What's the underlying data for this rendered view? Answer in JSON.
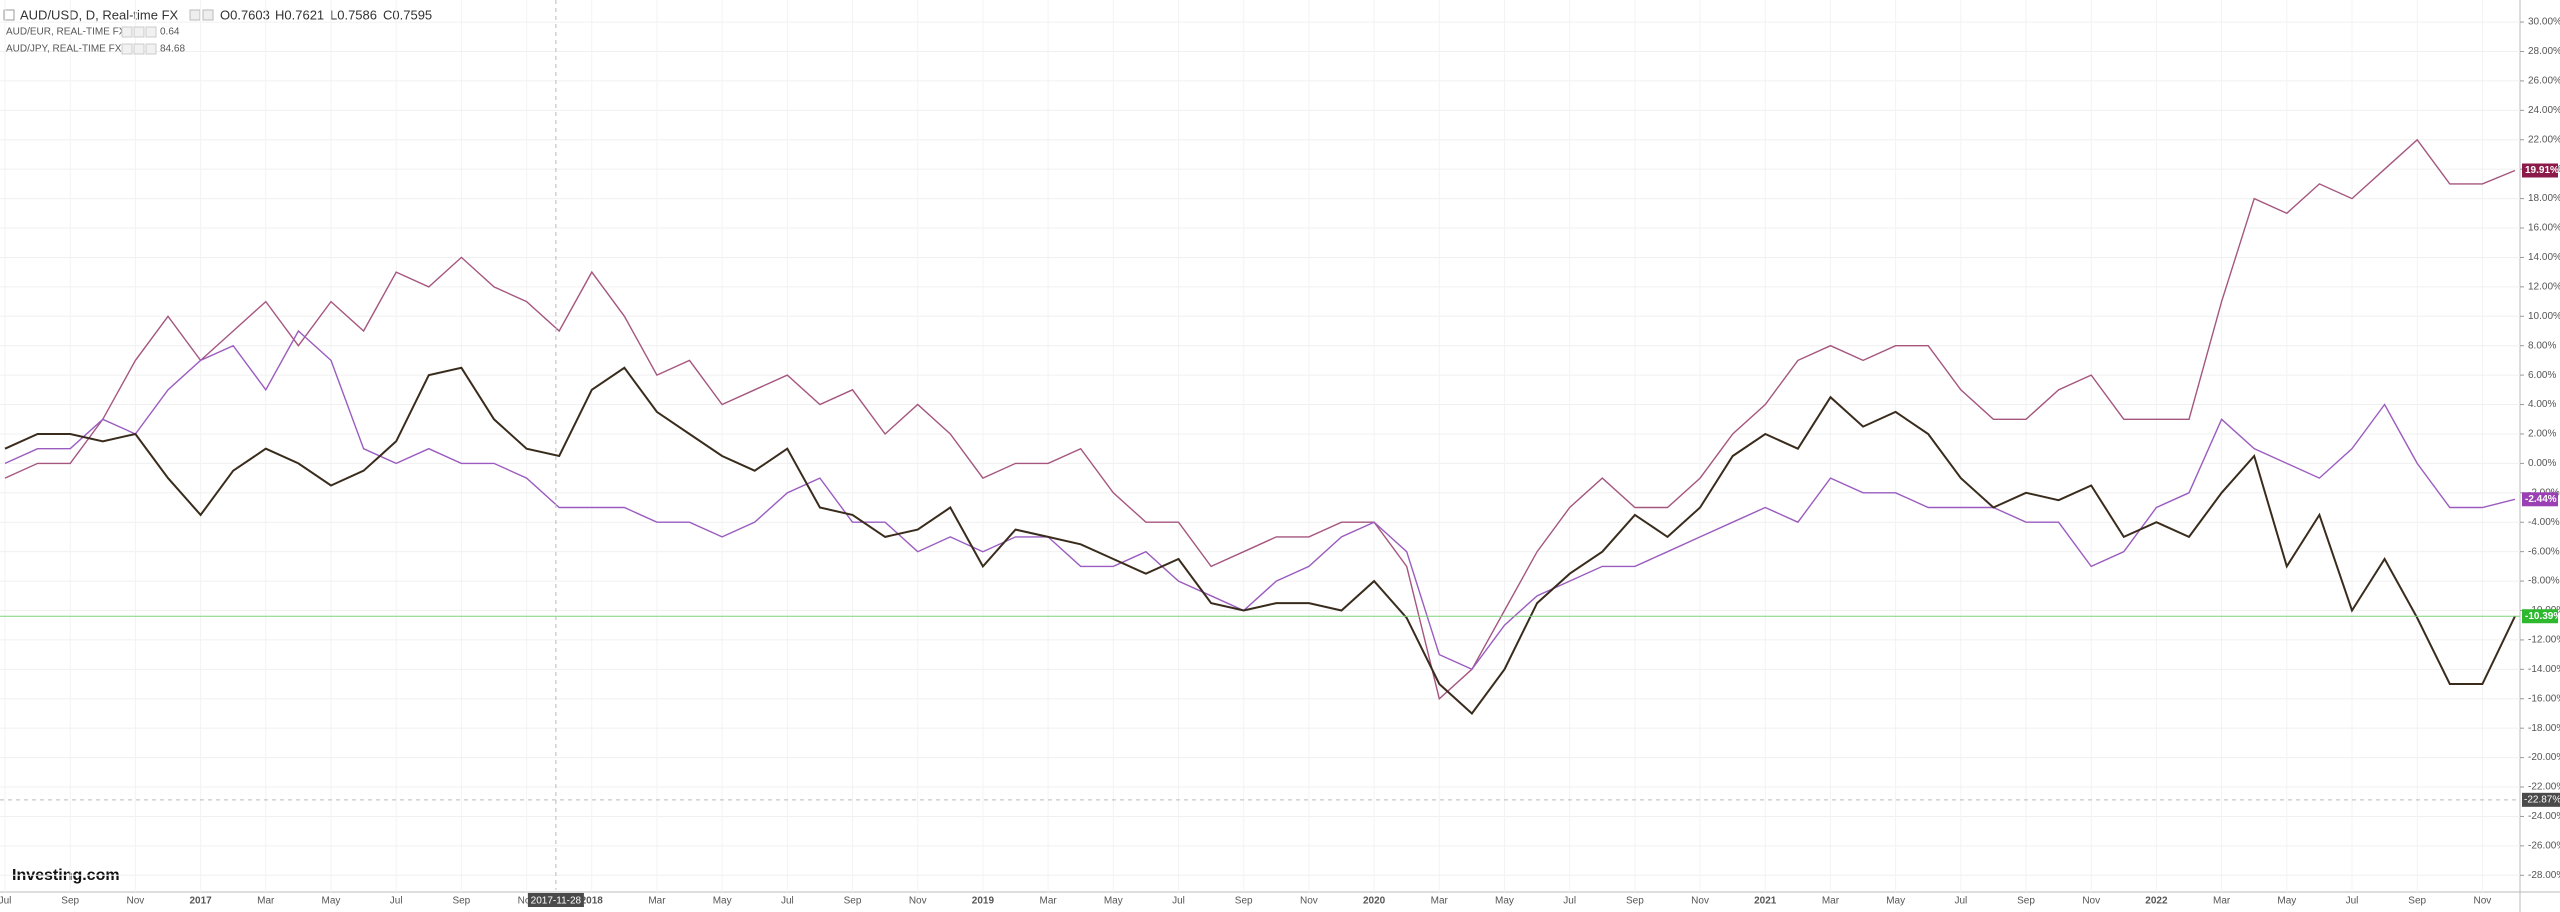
{
  "header": {
    "symbol": "AUD/USD, D, Real-time FX",
    "open": "O0.7603",
    "high": "H0.7621",
    "low": "L0.7586",
    "close": "C0.7595"
  },
  "brand": "Investing.com",
  "chart_data": {
    "type": "line",
    "categories": [
      "Jul",
      null,
      "Sep",
      null,
      "Nov",
      null,
      "2017",
      null,
      "Mar",
      null,
      "May",
      null,
      "Jul",
      null,
      "Sep",
      null,
      "Nov",
      null,
      "2018",
      null,
      "Mar",
      null,
      "May",
      null,
      "Jul",
      null,
      "Sep",
      null,
      "Nov",
      null,
      "2019",
      null,
      "Mar",
      null,
      "May",
      null,
      "Jul",
      null,
      "Sep",
      null,
      "Nov",
      null,
      "2020",
      null,
      "Mar",
      null,
      "May",
      null,
      "Jul",
      null,
      "Sep",
      null,
      "Nov",
      null,
      "2021",
      null,
      "Mar",
      null,
      "May",
      null,
      "Jul",
      null,
      "Sep",
      null,
      "Nov",
      null,
      "2022",
      null,
      "Mar",
      null,
      "May",
      null,
      "Jul",
      null,
      "Sep",
      null,
      "Nov",
      null
    ],
    "series": [
      {
        "name": "AUD/JPY, REAL-TIME FX",
        "last": "84.68",
        "color": "#a5567f",
        "values": [
          -1,
          0,
          0,
          3,
          7,
          10,
          7,
          9,
          11,
          8,
          11,
          9,
          13,
          12,
          14,
          12,
          11,
          9,
          13,
          10,
          6,
          7,
          4,
          5,
          6,
          4,
          5,
          2,
          4,
          2,
          -1,
          0,
          0,
          1,
          -2,
          -4,
          -4,
          -7,
          -6,
          -5,
          -5,
          -4,
          -4,
          -7,
          -16,
          -14,
          -10,
          -6,
          -3,
          -1,
          -3,
          -3,
          -1,
          2,
          4,
          7,
          8,
          7,
          8,
          8,
          5,
          3,
          3,
          5,
          6,
          3,
          3,
          3,
          11,
          18,
          17,
          19,
          18,
          20,
          22,
          19,
          19,
          19.91
        ],
        "value_labels": [
          null,
          null,
          null,
          null,
          null,
          null,
          null,
          null,
          null,
          null,
          null,
          null,
          null,
          null,
          null,
          null,
          null,
          null,
          null,
          null,
          null,
          null,
          null,
          null,
          null,
          null,
          null,
          null,
          null,
          null,
          null,
          null,
          null,
          null,
          null,
          null,
          null,
          null,
          null,
          null,
          null,
          null,
          null,
          null,
          null,
          null,
          null,
          null,
          null,
          null,
          null,
          null,
          null,
          null,
          null,
          null,
          null,
          null,
          null,
          null,
          null,
          null,
          null,
          null,
          null,
          null,
          null,
          null,
          null,
          null,
          null,
          null,
          null,
          null,
          null,
          null,
          null,
          "19.91%"
        ]
      },
      {
        "name": "AUD/EUR, REAL-TIME FX",
        "last": "0.64",
        "color": "#9b5cc0",
        "values": [
          0,
          1,
          1,
          3,
          2,
          5,
          7,
          8,
          5,
          9,
          7,
          1,
          0,
          1,
          0,
          0,
          -1,
          -3,
          -3,
          -3,
          -4,
          -4,
          -5,
          -4,
          -2,
          -1,
          -4,
          -4,
          -6,
          -5,
          -6,
          -5,
          -5,
          -7,
          -7,
          -6,
          -8,
          -9,
          -10,
          -8,
          -7,
          -5,
          -4,
          -6,
          -13,
          -14,
          -11,
          -9,
          -8,
          -7,
          -7,
          -6,
          -5,
          -4,
          -3,
          -4,
          -1,
          -2,
          -2,
          -3,
          -3,
          -3,
          -4,
          -4,
          -7,
          -6,
          -3,
          -2,
          3,
          1,
          0,
          -1,
          1,
          4,
          0,
          -3,
          -3,
          -2.44
        ],
        "value_labels": [
          null,
          null,
          null,
          null,
          null,
          null,
          null,
          null,
          null,
          null,
          null,
          null,
          null,
          null,
          null,
          null,
          null,
          null,
          null,
          null,
          null,
          null,
          null,
          null,
          null,
          null,
          null,
          null,
          null,
          null,
          null,
          null,
          null,
          null,
          null,
          null,
          null,
          null,
          null,
          null,
          null,
          null,
          null,
          null,
          null,
          null,
          null,
          null,
          null,
          null,
          null,
          null,
          null,
          null,
          null,
          null,
          null,
          null,
          null,
          null,
          null,
          null,
          null,
          null,
          null,
          null,
          null,
          null,
          null,
          null,
          null,
          null,
          null,
          null,
          null,
          null,
          null,
          "-2.44%"
        ]
      },
      {
        "name": "AUD/USD",
        "color": "#3a2c1c",
        "values": [
          1,
          2,
          2,
          1.5,
          2,
          -1,
          -3.5,
          -0.5,
          1,
          0,
          -1.5,
          -0.5,
          1.5,
          6,
          6.5,
          3,
          1,
          0.5,
          5,
          6.5,
          3.5,
          2,
          0.5,
          -0.5,
          1,
          -3,
          -3.5,
          -5,
          -4.5,
          -3,
          -7,
          -4.5,
          -5,
          -5.5,
          -6.5,
          -7.5,
          -6.5,
          -9.5,
          -10,
          -9.5,
          -9.5,
          -10,
          -8,
          -10.5,
          -15,
          -17,
          -14,
          -9.5,
          -7.5,
          -6,
          -3.5,
          -5,
          -3,
          0.5,
          2,
          1,
          4.5,
          2.5,
          3.5,
          2,
          -1,
          -3,
          -2,
          -2.5,
          -1.5,
          -5,
          -4,
          -5,
          -2,
          0.5,
          -7,
          -3.5,
          -10,
          -6.5,
          -10.5,
          -15,
          -15,
          -10.39
        ],
        "value_labels": [
          null,
          null,
          null,
          null,
          null,
          null,
          null,
          null,
          null,
          null,
          null,
          null,
          null,
          null,
          null,
          null,
          null,
          null,
          null,
          null,
          null,
          null,
          null,
          null,
          null,
          null,
          null,
          null,
          null,
          null,
          null,
          null,
          null,
          null,
          null,
          null,
          null,
          null,
          null,
          null,
          null,
          null,
          null,
          null,
          null,
          null,
          null,
          null,
          null,
          null,
          null,
          null,
          null,
          null,
          null,
          null,
          null,
          null,
          null,
          null,
          null,
          null,
          null,
          null,
          null,
          null,
          null,
          null,
          null,
          null,
          null,
          null,
          null,
          null,
          null,
          null,
          null,
          "-10.39%"
        ]
      }
    ],
    "ylim": [
      -29,
      31.5
    ],
    "yticks": [
      {
        "value": 30,
        "label": "30.00%"
      },
      {
        "value": 28,
        "label": "28.00%"
      },
      {
        "value": 26,
        "label": "26.00%"
      },
      {
        "value": 24,
        "label": "24.00%"
      },
      {
        "value": 22,
        "label": "22.00%"
      },
      {
        "value": 20,
        "label": "20.00%"
      },
      {
        "value": 18,
        "label": "18.00%"
      },
      {
        "value": 16,
        "label": "16.00%"
      },
      {
        "value": 14,
        "label": "14.00%"
      },
      {
        "value": 12,
        "label": "12.00%"
      },
      {
        "value": 10,
        "label": "10.00%"
      },
      {
        "value": 8,
        "label": "8.00%"
      },
      {
        "value": 6,
        "label": "6.00%"
      },
      {
        "value": 4,
        "label": "4.00%"
      },
      {
        "value": 2,
        "label": "2.00%"
      },
      {
        "value": 0,
        "label": "0.00%"
      },
      {
        "value": -2,
        "label": "-2.00%"
      },
      {
        "value": -4,
        "label": "-4.00%"
      },
      {
        "value": -6,
        "label": "-6.00%"
      },
      {
        "value": -8,
        "label": "-8.00%"
      },
      {
        "value": -10,
        "label": "-10.00%"
      },
      {
        "value": -12,
        "label": "-12.00%"
      },
      {
        "value": -14,
        "label": "-14.00%"
      },
      {
        "value": -16,
        "label": "-16.00%"
      },
      {
        "value": -18,
        "label": "-18.00%"
      },
      {
        "value": -20,
        "label": "-20.00%"
      },
      {
        "value": -22,
        "label": "-22.00%"
      },
      {
        "value": -24,
        "label": "-24.00%"
      },
      {
        "value": -26,
        "label": "-26.00%"
      },
      {
        "value": -28,
        "label": "-28.00%"
      }
    ],
    "grid": true,
    "crosshair": {
      "date": "2017-11-28",
      "value": -22.87,
      "label": "-22.87%"
    }
  }
}
